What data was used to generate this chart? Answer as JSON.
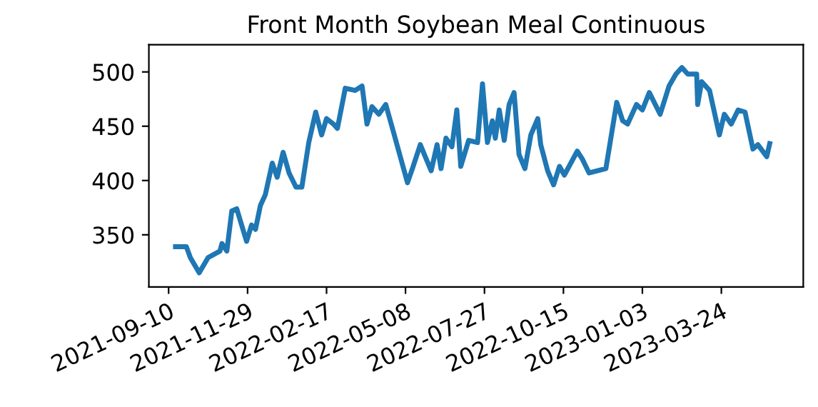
{
  "chart_data": {
    "type": "line",
    "title": "Front Month Soybean Meal Continuous",
    "xlim": [
      "2021-08-21",
      "2023-06-15"
    ],
    "ylim": [
      302,
      525
    ],
    "xticks": [
      "2021-09-10",
      "2021-11-29",
      "2022-02-17",
      "2022-05-08",
      "2022-07-27",
      "2022-10-15",
      "2023-01-03",
      "2023-03-24"
    ],
    "yticks": [
      350,
      400,
      450,
      500
    ],
    "grid": false,
    "legend": false,
    "series": [
      {
        "color": "#1f77b4",
        "x": [
          "2021-09-17",
          "2021-09-28",
          "2021-10-02",
          "2021-10-11",
          "2021-10-20",
          "2021-11-01",
          "2021-11-03",
          "2021-11-08",
          "2021-11-13",
          "2021-11-18",
          "2021-11-23",
          "2021-11-28",
          "2021-12-03",
          "2021-12-07",
          "2021-12-12",
          "2021-12-17",
          "2021-12-24",
          "2021-12-29",
          "2022-01-04",
          "2022-01-10",
          "2022-01-17",
          "2022-01-23",
          "2022-01-30",
          "2022-02-06",
          "2022-02-12",
          "2022-02-17",
          "2022-02-24",
          "2022-02-28",
          "2022-03-08",
          "2022-03-18",
          "2022-03-25",
          "2022-03-30",
          "2022-04-04",
          "2022-04-11",
          "2022-04-18",
          "2022-04-26",
          "2022-05-10",
          "2022-05-15",
          "2022-05-23",
          "2022-05-28",
          "2022-06-03",
          "2022-06-09",
          "2022-06-13",
          "2022-06-18",
          "2022-06-24",
          "2022-06-29",
          "2022-07-03",
          "2022-07-11",
          "2022-07-20",
          "2022-07-25",
          "2022-07-30",
          "2022-08-04",
          "2022-08-07",
          "2022-08-11",
          "2022-08-16",
          "2022-08-21",
          "2022-08-26",
          "2022-08-31",
          "2022-09-06",
          "2022-09-12",
          "2022-09-19",
          "2022-09-22",
          "2022-09-29",
          "2022-10-05",
          "2022-10-11",
          "2022-10-16",
          "2022-10-29",
          "2022-11-03",
          "2022-11-10",
          "2022-11-27",
          "2022-12-08",
          "2022-12-14",
          "2022-12-19",
          "2022-12-28",
          "2023-01-03",
          "2023-01-10",
          "2023-01-21",
          "2023-01-30",
          "2023-02-06",
          "2023-02-12",
          "2023-02-18",
          "2023-02-27",
          "2023-02-28",
          "2023-03-04",
          "2023-03-12",
          "2023-03-22",
          "2023-03-27",
          "2023-04-03",
          "2023-04-10",
          "2023-04-17",
          "2023-04-25",
          "2023-04-30",
          "2023-05-09",
          "2023-05-12"
        ],
        "values": [
          339,
          339,
          329,
          315,
          329,
          335,
          342,
          335,
          372,
          374,
          359,
          344,
          359,
          355,
          377,
          387,
          416,
          403,
          426,
          407,
          394,
          394,
          435,
          463,
          442,
          457,
          452,
          448,
          485,
          483,
          487,
          452,
          468,
          461,
          470,
          444,
          398,
          411,
          433,
          422,
          409,
          433,
          411,
          439,
          431,
          465,
          413,
          437,
          435,
          489,
          435,
          455,
          439,
          465,
          437,
          470,
          481,
          424,
          411,
          442,
          457,
          433,
          409,
          396,
          413,
          405,
          427,
          420,
          407,
          411,
          472,
          455,
          452,
          470,
          465,
          481,
          461,
          487,
          498,
          504,
          498,
          498,
          470,
          491,
          483,
          442,
          461,
          452,
          465,
          463,
          429,
          433,
          422,
          434
        ]
      }
    ]
  }
}
